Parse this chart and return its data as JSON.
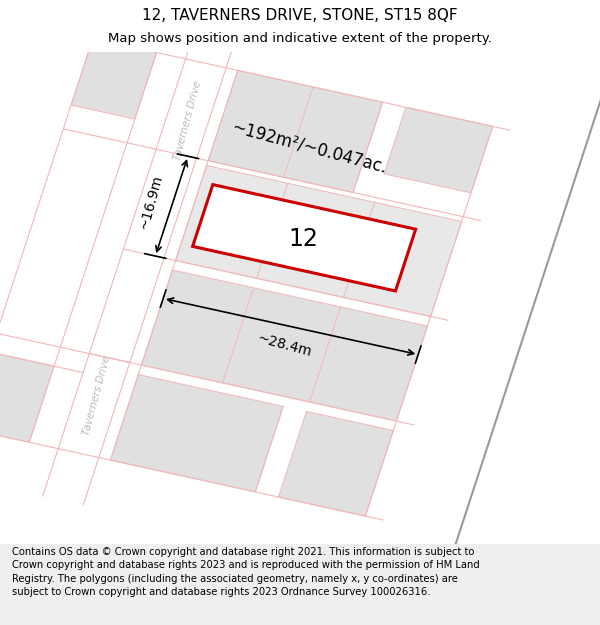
{
  "title_line1": "12, TAVERNERS DRIVE, STONE, ST15 8QF",
  "title_line2": "Map shows position and indicative extent of the property.",
  "footer_text": "Contains OS data © Crown copyright and database right 2021. This information is subject to Crown copyright and database rights 2023 and is reproduced with the permission of HM Land Registry. The polygons (including the associated geometry, namely x, y co-ordinates) are subject to Crown copyright and database rights 2023 Ordnance Survey 100026316.",
  "area_label": "~192m²/~0.047ac.",
  "number_label": "12",
  "dim_horizontal": "~28.4m",
  "dim_vertical": "~16.9m",
  "bg_color": "#ffffff",
  "road_color": "#f0b8b8",
  "block_color": "#e0e0e0",
  "plot_line_color": "#cc0000",
  "street_label": "Taverners Drive",
  "title_fontsize": 11,
  "subtitle_fontsize": 9.5,
  "footer_fontsize": 7.2,
  "map_rotation_deg": 15
}
